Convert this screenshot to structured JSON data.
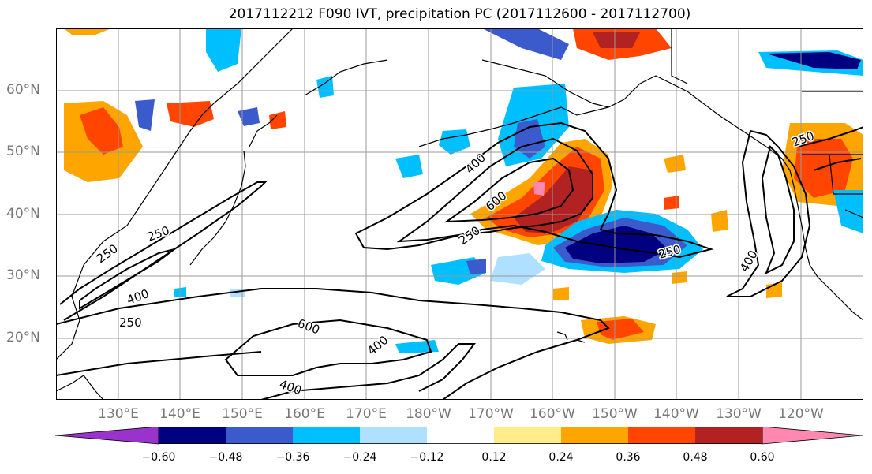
{
  "title": "2017112212 F090 IVT, precipitation PC (2017112600 - 2017112700)",
  "map": {
    "region": "North Pacific",
    "lon_range": [
      120,
      250
    ],
    "lat_range": [
      10,
      70
    ],
    "projection": "PlateCarree",
    "grid": true,
    "coastline_color": "#000000",
    "grid_color": "#999999"
  },
  "lat_ticks": [
    "60°N",
    "50°N",
    "40°N",
    "30°N",
    "20°N"
  ],
  "lon_ticks": [
    "130°E",
    "140°E",
    "150°E",
    "160°E",
    "170°E",
    "180°W",
    "170°W",
    "160°W",
    "150°W",
    "140°W",
    "130°W",
    "120°W"
  ],
  "ivt_contour_labels": [
    "250",
    "400",
    "600"
  ],
  "colorbar": {
    "colors": [
      "#9933cc",
      "#000080",
      "#3b5bcc",
      "#00bfff",
      "#b0e0ff",
      "#ffffff",
      "#ffec8b",
      "#ffa500",
      "#ff4500",
      "#b22222",
      "#ff88b0"
    ],
    "tick_labels": [
      "−0.60",
      "−0.48",
      "−0.36",
      "−0.24",
      "−0.12",
      "0.12",
      "0.24",
      "0.36",
      "0.48",
      "0.60"
    ],
    "extend": "both"
  }
}
